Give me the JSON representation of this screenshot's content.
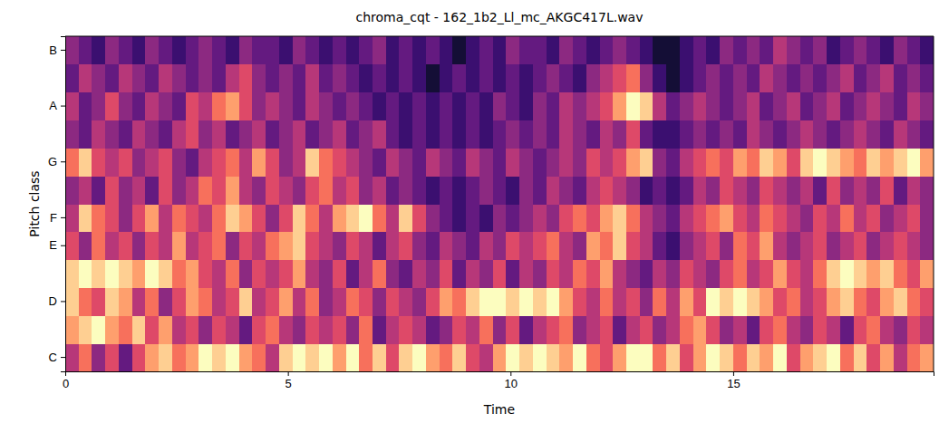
{
  "chart_data": {
    "type": "heatmap",
    "title": "chroma_cqt - 162_1b2_Ll_mc_AKGC417L.wav",
    "xlabel": "Time",
    "ylabel": "Pitch class",
    "categories": [
      "C",
      null,
      "D",
      null,
      "E",
      "F",
      null,
      "G",
      null,
      "A",
      null,
      "B"
    ],
    "x": [
      0,
      0.3,
      0.6,
      0.9,
      1.2,
      1.5,
      1.8,
      2.1,
      2.4,
      2.7,
      3,
      3.3,
      3.6,
      3.9,
      4.2,
      4.5,
      4.8,
      5.1,
      5.4,
      5.7,
      6,
      6.3,
      6.6,
      6.9,
      7.2,
      7.5,
      7.8,
      8.1,
      8.4,
      8.7,
      9,
      9.3,
      9.6,
      9.9,
      10.2,
      10.5,
      10.8,
      11.1,
      11.4,
      11.7,
      12,
      12.3,
      12.6,
      12.9,
      13.2,
      13.5,
      13.8,
      14.1,
      14.4,
      14.7,
      15,
      15.3,
      15.6,
      15.9,
      16.2,
      16.5,
      16.8,
      17.1,
      17.4,
      17.7,
      18,
      18.3,
      18.6,
      18.9,
      19.2
    ],
    "xlim": [
      0,
      19.5
    ],
    "xticks": [
      0,
      5,
      10,
      15
    ],
    "zlim": [
      0,
      1
    ],
    "z": [
      [
        0.5,
        0.7,
        0.4,
        0.6,
        0.3,
        0.6,
        0.8,
        0.9,
        0.7,
        0.8,
        1,
        0.9,
        1,
        0.8,
        0.7,
        0.5,
        0.9,
        1,
        0.9,
        1,
        0.8,
        1,
        0.7,
        0.9,
        0.6,
        0.9,
        1,
        0.8,
        0.7,
        0.9,
        0.6,
        0.5,
        0.8,
        1,
        0.9,
        1,
        0.9,
        0.8,
        1,
        0.7,
        0.6,
        0.8,
        1,
        1,
        0.7,
        0.9,
        0.6,
        0.8,
        1,
        0.9,
        0.7,
        0.9,
        0.8,
        1,
        0.6,
        0.8,
        0.9,
        1,
        0.7,
        0.9,
        0.6,
        0.8,
        0.5,
        0.7,
        0.8
      ],
      [
        0.8,
        0.9,
        1,
        0.8,
        0.7,
        0.9,
        0.6,
        0.8,
        0.5,
        0.6,
        0.4,
        0.6,
        0.5,
        0.3,
        0.6,
        0.7,
        0.5,
        0.4,
        0.6,
        0.5,
        0.6,
        0.4,
        0.7,
        0.3,
        0.5,
        0.6,
        0.5,
        0.3,
        0.4,
        0.6,
        0.5,
        0.7,
        0.4,
        0.6,
        0.3,
        0.5,
        0.6,
        0.7,
        0.4,
        0.5,
        0.6,
        0.3,
        0.5,
        0.6,
        0.4,
        0.5,
        0.7,
        0.8,
        0.6,
        0.4,
        0.5,
        0.3,
        0.6,
        0.7,
        0.5,
        0.4,
        0.6,
        0.5,
        0.3,
        0.6,
        0.7,
        0.5,
        0.4,
        0.6,
        0.5
      ],
      [
        0.9,
        0.7,
        0.6,
        0.9,
        0.8,
        0.5,
        0.7,
        0.4,
        0.6,
        0.8,
        0.7,
        0.5,
        0.6,
        0.9,
        0.5,
        0.6,
        0.8,
        0.5,
        0.7,
        0.4,
        0.5,
        0.7,
        0.6,
        0.4,
        0.6,
        0.5,
        0.4,
        0.6,
        0.8,
        0.7,
        0.9,
        1,
        1,
        0.9,
        1,
        0.9,
        1,
        0.8,
        0.6,
        0.5,
        0.7,
        0.5,
        0.6,
        0.4,
        0.7,
        0.5,
        0.8,
        0.6,
        1,
        0.9,
        1,
        0.9,
        0.8,
        0.6,
        0.7,
        0.5,
        0.6,
        0.8,
        0.9,
        0.7,
        0.6,
        0.8,
        0.9,
        0.7,
        0.6
      ],
      [
        0.9,
        1,
        0.9,
        1,
        0.9,
        0.8,
        1,
        0.9,
        0.7,
        0.8,
        0.6,
        0.5,
        0.7,
        0.4,
        0.6,
        0.5,
        0.6,
        0.8,
        0.5,
        0.4,
        0.6,
        0.3,
        0.5,
        0.7,
        0.4,
        0.3,
        0.5,
        0.4,
        0.6,
        0.3,
        0.5,
        0.4,
        0.6,
        0.3,
        0.5,
        0.4,
        0.6,
        0.5,
        0.7,
        0.6,
        0.8,
        0.5,
        0.4,
        0.3,
        0.5,
        0.4,
        0.6,
        0.5,
        0.4,
        0.6,
        0.7,
        0.5,
        0.6,
        0.8,
        0.6,
        0.5,
        0.7,
        0.9,
        1,
        0.9,
        0.8,
        0.9,
        0.7,
        0.6,
        0.8
      ],
      [
        0.6,
        0.4,
        0.7,
        0.5,
        0.6,
        0.4,
        0.6,
        0.5,
        0.8,
        0.5,
        0.6,
        0.7,
        0.4,
        0.6,
        0.5,
        0.7,
        0.8,
        0.9,
        0.6,
        0.5,
        0.4,
        0.6,
        0.5,
        0.3,
        0.5,
        0.6,
        0.4,
        0.3,
        0.5,
        0.4,
        0.3,
        0.5,
        0.4,
        0.6,
        0.5,
        0.6,
        0.7,
        0.5,
        0.4,
        0.8,
        0.7,
        0.9,
        0.6,
        0.5,
        0.3,
        0.2,
        0.4,
        0.5,
        0.6,
        0.4,
        0.7,
        0.6,
        0.8,
        0.5,
        0.4,
        0.5,
        0.6,
        0.4,
        0.5,
        0.6,
        0.4,
        0.5,
        0.6,
        0.5,
        0.4
      ],
      [
        0.5,
        0.9,
        0.7,
        0.6,
        0.4,
        0.6,
        0.8,
        0.5,
        0.7,
        0.6,
        0.5,
        0.7,
        0.9,
        0.8,
        0.6,
        0.4,
        0.6,
        0.9,
        0.7,
        0.5,
        0.8,
        0.9,
        1,
        0.7,
        0.5,
        0.9,
        0.6,
        0.4,
        0.3,
        0.2,
        0.3,
        0.2,
        0.4,
        0.3,
        0.4,
        0.5,
        0.4,
        0.6,
        0.7,
        0.6,
        0.8,
        0.9,
        0.7,
        0.5,
        0.4,
        0.3,
        0.5,
        0.6,
        0.7,
        0.8,
        0.6,
        0.5,
        0.7,
        0.6,
        0.5,
        0.4,
        0.6,
        0.5,
        0.7,
        0.5,
        0.6,
        0.4,
        0.5,
        0.6,
        0.4
      ],
      [
        0.4,
        0.5,
        0.3,
        0.6,
        0.4,
        0.5,
        0.3,
        0.6,
        0.4,
        0.5,
        0.7,
        0.6,
        0.8,
        0.5,
        0.4,
        0.6,
        0.5,
        0.4,
        0.6,
        0.7,
        0.5,
        0.6,
        0.4,
        0.5,
        0.3,
        0.4,
        0.3,
        0.2,
        0.3,
        0.2,
        0.3,
        0.4,
        0.3,
        0.2,
        0.4,
        0.3,
        0.5,
        0.4,
        0.3,
        0.5,
        0.6,
        0.5,
        0.4,
        0.2,
        0.3,
        0.2,
        0.3,
        0.5,
        0.4,
        0.6,
        0.5,
        0.4,
        0.6,
        0.5,
        0.4,
        0.5,
        0.3,
        0.6,
        0.4,
        0.5,
        0.4,
        0.6,
        0.3,
        0.5,
        0.4
      ],
      [
        0.7,
        0.9,
        0.6,
        0.5,
        0.6,
        0.4,
        0.5,
        0.6,
        0.4,
        0.3,
        0.5,
        0.6,
        0.7,
        0.5,
        0.8,
        0.6,
        0.4,
        0.5,
        0.9,
        0.7,
        0.6,
        0.5,
        0.4,
        0.3,
        0.5,
        0.4,
        0.3,
        0.5,
        0.4,
        0.3,
        0.5,
        0.4,
        0.3,
        0.5,
        0.4,
        0.3,
        0.4,
        0.5,
        0.4,
        0.6,
        0.5,
        0.6,
        0.8,
        0.9,
        0.4,
        0.3,
        0.5,
        0.6,
        0.7,
        0.6,
        0.8,
        0.7,
        0.9,
        0.8,
        0.6,
        0.9,
        1,
        0.9,
        0.8,
        0.7,
        0.9,
        0.8,
        0.9,
        1,
        0.8
      ],
      [
        0.4,
        0.3,
        0.5,
        0.4,
        0.3,
        0.5,
        0.4,
        0.3,
        0.5,
        0.6,
        0.4,
        0.5,
        0.3,
        0.4,
        0.5,
        0.3,
        0.4,
        0.5,
        0.3,
        0.4,
        0.5,
        0.3,
        0.4,
        0.5,
        0.3,
        0.2,
        0.3,
        0.2,
        0.3,
        0.2,
        0.3,
        0.2,
        0.3,
        0.4,
        0.3,
        0.4,
        0.3,
        0.5,
        0.4,
        0.3,
        0.5,
        0.4,
        0.6,
        0.3,
        0.2,
        0.2,
        0.3,
        0.4,
        0.3,
        0.4,
        0.3,
        0.5,
        0.4,
        0.3,
        0.4,
        0.5,
        0.4,
        0.3,
        0.4,
        0.5,
        0.4,
        0.3,
        0.5,
        0.4,
        0.3
      ],
      [
        0.5,
        0.3,
        0.4,
        0.6,
        0.4,
        0.3,
        0.5,
        0.4,
        0.3,
        0.6,
        0.5,
        0.7,
        0.8,
        0.6,
        0.4,
        0.5,
        0.4,
        0.3,
        0.5,
        0.4,
        0.3,
        0.4,
        0.3,
        0.2,
        0.3,
        0.2,
        0.3,
        0.2,
        0.3,
        0.2,
        0.3,
        0.2,
        0.4,
        0.3,
        0.2,
        0.4,
        0.3,
        0.5,
        0.4,
        0.5,
        0.6,
        0.8,
        1,
        0.9,
        0.5,
        0.3,
        0.4,
        0.5,
        0.4,
        0.3,
        0.4,
        0.5,
        0.3,
        0.4,
        0.5,
        0.3,
        0.4,
        0.5,
        0.3,
        0.4,
        0.5,
        0.4,
        0.3,
        0.5,
        0.4
      ],
      [
        0.3,
        0.5,
        0.4,
        0.3,
        0.5,
        0.4,
        0.3,
        0.5,
        0.4,
        0.3,
        0.4,
        0.3,
        0.5,
        0.6,
        0.4,
        0.3,
        0.4,
        0.3,
        0.5,
        0.3,
        0.4,
        0.3,
        0.2,
        0.3,
        0.2,
        0.3,
        0.2,
        0.1,
        0.2,
        0.3,
        0.2,
        0.3,
        0.2,
        0.3,
        0.2,
        0.3,
        0.4,
        0.3,
        0.2,
        0.4,
        0.5,
        0.6,
        0.7,
        0.4,
        0.2,
        0.1,
        0.2,
        0.3,
        0.4,
        0.3,
        0.4,
        0.3,
        0.5,
        0.4,
        0.3,
        0.4,
        0.3,
        0.4,
        0.5,
        0.3,
        0.4,
        0.5,
        0.3,
        0.4,
        0.3
      ],
      [
        0.4,
        0.3,
        0.2,
        0.4,
        0.3,
        0.2,
        0.4,
        0.3,
        0.2,
        0.3,
        0.4,
        0.3,
        0.2,
        0.4,
        0.3,
        0.3,
        0.2,
        0.4,
        0.3,
        0.2,
        0.3,
        0.2,
        0.3,
        0.4,
        0.2,
        0.3,
        0.2,
        0.3,
        0.2,
        0.1,
        0.2,
        0.3,
        0.2,
        0.4,
        0.3,
        0.3,
        0.2,
        0.4,
        0.3,
        0.2,
        0.3,
        0.4,
        0.3,
        0.2,
        0.1,
        0.1,
        0.2,
        0.3,
        0.2,
        0.4,
        0.3,
        0.4,
        0.3,
        0.5,
        0.4,
        0.3,
        0.4,
        0.2,
        0.3,
        0.4,
        0.3,
        0.2,
        0.4,
        0.3,
        0.2
      ]
    ]
  }
}
